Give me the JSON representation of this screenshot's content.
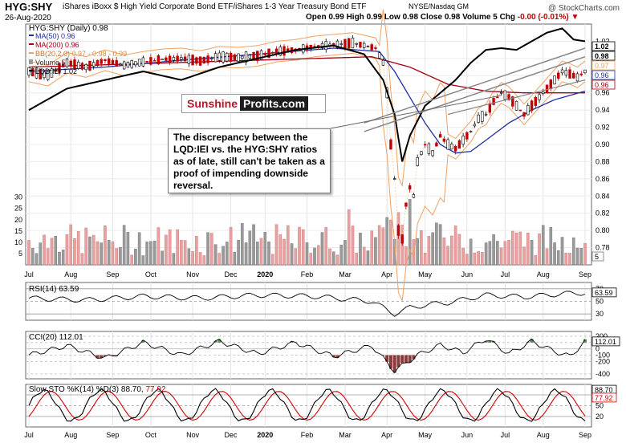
{
  "header": {
    "ticker": "HYG:SHY",
    "subtitle": "iShares iBoxx $ High Yield Corporate Bond ETF/iShares 1-3 Year Treasury Bond ETF",
    "exchange": "NYSE/Nasdaq GM",
    "date": "26-Aug-2020",
    "ohlc_text": "Open 0.99 High 0.99 Low 0.98 Close 0.98 Volume 5 Chg",
    "chg_text": "-0.00 (-0.01%)",
    "credit": "@ StockCharts.com"
  },
  "legend": {
    "main": "HYG:SHY (Daily) 0.98",
    "ma50": "MA(50) 0.96",
    "ma200": "MA(200) 0.96",
    "bb_label": "BB(20,2.0)",
    "bb_values": "0.97 - 0.98 - 0.99",
    "volume": "Volume 5",
    "lqd": "LQD:IEI 1.02"
  },
  "logo": {
    "part1": "Sunshine",
    "part2": "Profits.com"
  },
  "annotation": "The discrepancy between the LQD:IEI vs. the HYG:SHY ratios as of late, still can't be taken as a proof of impending downside reversal.",
  "colors": {
    "price": "#000000",
    "ma50": "#1f2fa0",
    "ma200": "#a00010",
    "bb": "#f0a060",
    "lqd": "#000000",
    "vol_up": "#9a9a9a",
    "vol_down": "#e8a0a0",
    "candle_down": "#c00000",
    "osc_pos": "#5a8a5a",
    "osc_neg": "#8a3a3a",
    "sto_k": "#000000",
    "sto_d": "#d00000",
    "trend": "#888888"
  },
  "chart_data": [
    {
      "type": "line",
      "panel": "price",
      "title": "HYG:SHY (Daily)",
      "x": [
        "Jul 2019",
        "Aug 2019",
        "Sep 2019",
        "Oct 2019",
        "Nov 2019",
        "Dec 2019",
        "Jan 2020",
        "Feb 2020",
        "Mar 2020",
        "Apr 2020",
        "May 2020",
        "Jun 2020",
        "Jul 2020",
        "Aug 2020"
      ],
      "xtick_labels": [
        "Jul",
        "Aug",
        "Sep",
        "Oct",
        "Nov",
        "Dec",
        "2020",
        "Feb",
        "Mar",
        "Apr",
        "May",
        "Jun",
        "Jul",
        "Aug",
        "Sep"
      ],
      "ylim": [
        0.76,
        1.04
      ],
      "yticks": [
        0.78,
        0.8,
        0.82,
        0.84,
        0.86,
        0.88,
        0.9,
        0.92,
        0.94,
        0.96,
        0.98,
        1.0,
        1.02
      ],
      "right_labels": [
        "1.02",
        "0.98",
        "0.97",
        "0.96",
        "0.96"
      ],
      "series": [
        {
          "name": "HYG:SHY",
          "points": [
            [
              0,
              0.985
            ],
            [
              5,
              0.98
            ],
            [
              10,
              0.995
            ],
            [
              15,
              0.99
            ],
            [
              20,
              0.998
            ],
            [
              25,
              0.992
            ],
            [
              30,
              0.996
            ],
            [
              35,
              0.999
            ],
            [
              40,
              1.0
            ],
            [
              45,
              0.997
            ],
            [
              50,
              1.002
            ],
            [
              55,
              1.001
            ],
            [
              60,
              1.003
            ],
            [
              65,
              1.008
            ],
            [
              70,
              1.01
            ],
            [
              75,
              1.014
            ],
            [
              80,
              1.016
            ],
            [
              85,
              1.018
            ],
            [
              88,
              1.015
            ],
            [
              91,
              1.012
            ],
            [
              93,
              0.995
            ],
            [
              94,
              0.96
            ],
            [
              95,
              0.9
            ],
            [
              96,
              0.86
            ],
            [
              97,
              0.8
            ],
            [
              98,
              0.79
            ],
            [
              99,
              0.83
            ],
            [
              100,
              0.85
            ],
            [
              101,
              0.84
            ],
            [
              102,
              0.88
            ],
            [
              104,
              0.9
            ],
            [
              106,
              0.89
            ],
            [
              108,
              0.91
            ],
            [
              110,
              0.9
            ],
            [
              112,
              0.895
            ],
            [
              114,
              0.905
            ],
            [
              116,
              0.915
            ],
            [
              118,
              0.93
            ],
            [
              120,
              0.935
            ],
            [
              122,
              0.95
            ],
            [
              124,
              0.96
            ],
            [
              126,
              0.955
            ],
            [
              128,
              0.945
            ],
            [
              130,
              0.935
            ],
            [
              132,
              0.945
            ],
            [
              134,
              0.955
            ],
            [
              136,
              0.965
            ],
            [
              138,
              0.975
            ],
            [
              140,
              0.985
            ],
            [
              142,
              0.982
            ],
            [
              144,
              0.978
            ],
            [
              146,
              0.985
            ]
          ]
        },
        {
          "name": "MA(50)",
          "points": [
            [
              0,
              0.985
            ],
            [
              20,
              0.99
            ],
            [
              40,
              0.998
            ],
            [
              60,
              1.005
            ],
            [
              80,
              1.012
            ],
            [
              92,
              1.008
            ],
            [
              96,
              0.985
            ],
            [
              100,
              0.955
            ],
            [
              104,
              0.925
            ],
            [
              108,
              0.9
            ],
            [
              112,
              0.89
            ],
            [
              116,
              0.892
            ],
            [
              120,
              0.905
            ],
            [
              126,
              0.925
            ],
            [
              132,
              0.94
            ],
            [
              138,
              0.952
            ],
            [
              146,
              0.962
            ]
          ]
        },
        {
          "name": "MA(200)",
          "points": [
            [
              0,
              0.99
            ],
            [
              30,
              0.994
            ],
            [
              60,
              0.998
            ],
            [
              90,
              1.002
            ],
            [
              100,
              0.99
            ],
            [
              110,
              0.97
            ],
            [
              120,
              0.962
            ],
            [
              130,
              0.96
            ],
            [
              140,
              0.96
            ],
            [
              146,
              0.96
            ]
          ]
        },
        {
          "name": "LQD:IEI",
          "points": [
            [
              0,
              0.94
            ],
            [
              10,
              0.965
            ],
            [
              20,
              0.975
            ],
            [
              30,
              0.985
            ],
            [
              40,
              0.975
            ],
            [
              50,
              0.99
            ],
            [
              60,
              1.0
            ],
            [
              70,
              1.01
            ],
            [
              80,
              1.015
            ],
            [
              88,
              1.005
            ],
            [
              93,
              0.975
            ],
            [
              96,
              0.935
            ],
            [
              98,
              0.88
            ],
            [
              100,
              0.91
            ],
            [
              104,
              0.945
            ],
            [
              108,
              0.96
            ],
            [
              112,
              0.975
            ],
            [
              116,
              0.995
            ],
            [
              120,
              1.01
            ],
            [
              124,
              1.012
            ],
            [
              128,
              1.01
            ],
            [
              132,
              1.02
            ],
            [
              136,
              1.03
            ],
            [
              140,
              1.035
            ],
            [
              143,
              1.022
            ],
            [
              146,
              1.02
            ]
          ]
        }
      ]
    },
    {
      "type": "bar",
      "panel": "volume",
      "name": "Volume",
      "yticks": [
        5,
        10,
        15,
        20,
        25,
        30
      ],
      "right_label": "5"
    },
    {
      "type": "line",
      "panel": "rsi",
      "name": "RSI(14)",
      "current": "63.59",
      "yticks": [
        70,
        50,
        30
      ],
      "right_label": "63.59",
      "points": [
        [
          0,
          55
        ],
        [
          15,
          52
        ],
        [
          30,
          58
        ],
        [
          45,
          55
        ],
        [
          60,
          60
        ],
        [
          75,
          58
        ],
        [
          90,
          50
        ],
        [
          96,
          30
        ],
        [
          100,
          40
        ],
        [
          105,
          45
        ],
        [
          110,
          48
        ],
        [
          120,
          60
        ],
        [
          130,
          57
        ],
        [
          140,
          62
        ],
        [
          146,
          63.59
        ]
      ]
    },
    {
      "type": "line",
      "panel": "cci",
      "name": "CCI(20)",
      "current": "112.01",
      "yticks": [
        200,
        100,
        0,
        -100,
        -200,
        -400
      ],
      "right_label": "112.01",
      "points": [
        [
          0,
          -100
        ],
        [
          10,
          50
        ],
        [
          20,
          -150
        ],
        [
          30,
          100
        ],
        [
          40,
          -100
        ],
        [
          50,
          120
        ],
        [
          60,
          -80
        ],
        [
          70,
          100
        ],
        [
          80,
          -120
        ],
        [
          90,
          50
        ],
        [
          96,
          -350
        ],
        [
          102,
          -100
        ],
        [
          108,
          60
        ],
        [
          114,
          -60
        ],
        [
          120,
          160
        ],
        [
          126,
          -80
        ],
        [
          132,
          120
        ],
        [
          138,
          -40
        ],
        [
          142,
          -120
        ],
        [
          146,
          112
        ]
      ]
    },
    {
      "type": "line",
      "panel": "stochastic",
      "name": "Slow STO",
      "k_label": "%K(14)",
      "d_label": "%D(3)",
      "k_value": "88.70",
      "d_value": "77.92",
      "yticks": [
        80,
        50,
        20
      ],
      "right_labels": [
        "88.70",
        "77.92"
      ]
    }
  ]
}
